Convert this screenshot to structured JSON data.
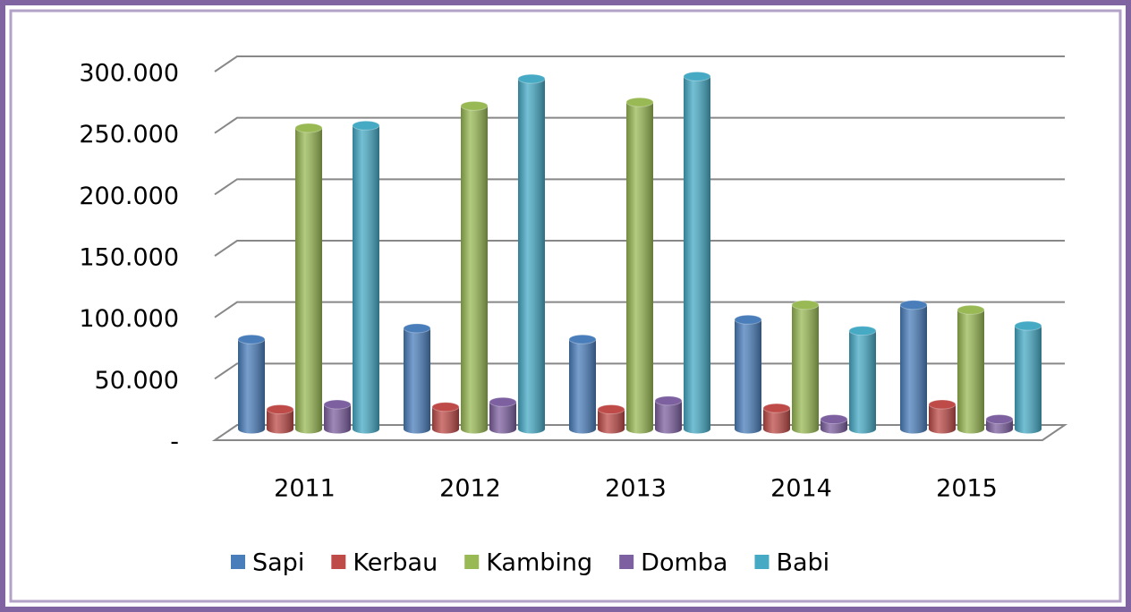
{
  "chart_data": {
    "type": "bar",
    "categories": [
      "2011",
      "2012",
      "2013",
      "2014",
      "2015"
    ],
    "series": [
      {
        "name": "Sapi",
        "color": "#4a7ebb",
        "values": [
          73000,
          82000,
          73000,
          89000,
          101000
        ]
      },
      {
        "name": "Kerbau",
        "color": "#be4b48",
        "values": [
          16000,
          18000,
          16000,
          17000,
          20000
        ]
      },
      {
        "name": "Kambing",
        "color": "#98b954",
        "values": [
          245000,
          263000,
          266000,
          101000,
          97000
        ]
      },
      {
        "name": "Domba",
        "color": "#7d60a0",
        "values": [
          20000,
          22000,
          23000,
          8000,
          8000
        ]
      },
      {
        "name": "Babi",
        "color": "#46aac5",
        "values": [
          247000,
          285000,
          287000,
          80000,
          84000
        ]
      }
    ],
    "ylim": [
      0,
      300000
    ],
    "yticks": [
      {
        "value": 0,
        "label": "-"
      },
      {
        "value": 50000,
        "label": "50.000"
      },
      {
        "value": 100000,
        "label": "100.000"
      },
      {
        "value": 150000,
        "label": "150.000"
      },
      {
        "value": 200000,
        "label": "200.000"
      },
      {
        "value": 250000,
        "label": "250.000"
      },
      {
        "value": 300000,
        "label": "300.000"
      }
    ],
    "grid": true,
    "legend": "bottom"
  }
}
